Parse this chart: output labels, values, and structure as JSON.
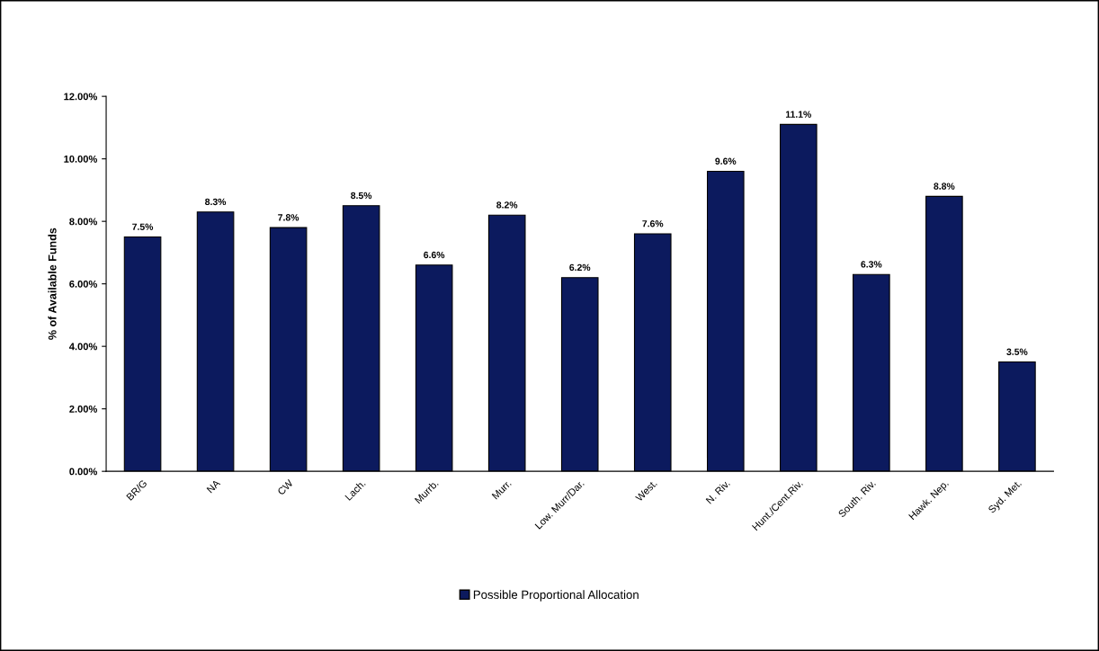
{
  "chart_data": {
    "type": "bar",
    "ylabel": "% of Available Funds",
    "categories": [
      "BR/G",
      "NA",
      "CW",
      "Lach.",
      "Murrb.",
      "Murr.",
      "Low. Murr/Dar.",
      "West.",
      "N. Riv.",
      "Hunt./Cent.Riv.",
      "South. Riv.",
      "Hawk. Nep.",
      "Syd. Met."
    ],
    "series": [
      {
        "name": "Possible Proportional Allocation",
        "color": "#0c1a5e",
        "values": [
          7.5,
          8.3,
          7.8,
          8.5,
          6.6,
          8.2,
          6.2,
          7.6,
          9.6,
          11.1,
          6.3,
          8.8,
          3.5
        ],
        "value_labels": [
          "7.5%",
          "8.3%",
          "7.8%",
          "8.5%",
          "6.6%",
          "8.2%",
          "6.2%",
          "7.6%",
          "9.6%",
          "11.1%",
          "6.3%",
          "8.8%",
          "3.5%"
        ]
      }
    ],
    "ylim": [
      0,
      12
    ],
    "yticks": [
      {
        "value": 0,
        "label": "0.00%"
      },
      {
        "value": 2,
        "label": "2.00%"
      },
      {
        "value": 4,
        "label": "4.00%"
      },
      {
        "value": 6,
        "label": "6.00%"
      },
      {
        "value": 8,
        "label": "8.00%"
      },
      {
        "value": 10,
        "label": "10.00%"
      },
      {
        "value": 12,
        "label": "12.00%"
      }
    ],
    "grid": false,
    "legend": "bottom"
  }
}
